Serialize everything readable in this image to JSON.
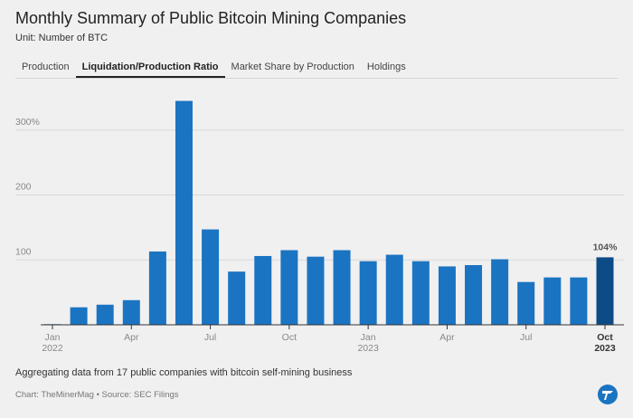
{
  "header": {
    "title": "Monthly Summary of Public Bitcoin Mining Companies",
    "subtitle": "Unit: Number of BTC",
    "tabs": [
      "Production",
      "Liquidation/Production Ratio",
      "Market Share by Production",
      "Holdings"
    ],
    "active_tab": 1
  },
  "chart_data": {
    "type": "bar",
    "categories": [
      "Jan",
      null,
      null,
      "Apr",
      null,
      null,
      "Jul",
      null,
      null,
      "Oct",
      null,
      null,
      "Jan",
      null,
      null,
      "Apr",
      null,
      null,
      "Jul",
      null,
      null,
      "Oct"
    ],
    "year_labels": [
      "2022",
      null,
      null,
      null,
      null,
      null,
      null,
      null,
      null,
      null,
      null,
      null,
      "2023",
      null,
      null,
      null,
      null,
      null,
      null,
      null,
      null,
      "2023"
    ],
    "values": [
      1,
      27,
      31,
      38,
      113,
      345,
      147,
      82,
      106,
      115,
      105,
      115,
      98,
      108,
      98,
      90,
      92,
      101,
      66,
      73,
      73,
      104
    ],
    "value_labels": [
      null,
      null,
      null,
      null,
      null,
      null,
      null,
      null,
      null,
      null,
      null,
      null,
      null,
      null,
      null,
      null,
      null,
      null,
      null,
      null,
      null,
      "104%"
    ],
    "color": "#1b74c2",
    "highlight": {
      "index": 21,
      "color": "#0d4b87"
    },
    "ylim": [
      0,
      375
    ],
    "yticks": [
      100,
      200,
      {
        "value": 300,
        "label": "300%"
      }
    ],
    "grid": true
  },
  "footer": {
    "note": "Aggregating data from 17 public companies with bitcoin self-mining business",
    "source": "Chart: TheMinerMag • Source: SEC Filings"
  }
}
